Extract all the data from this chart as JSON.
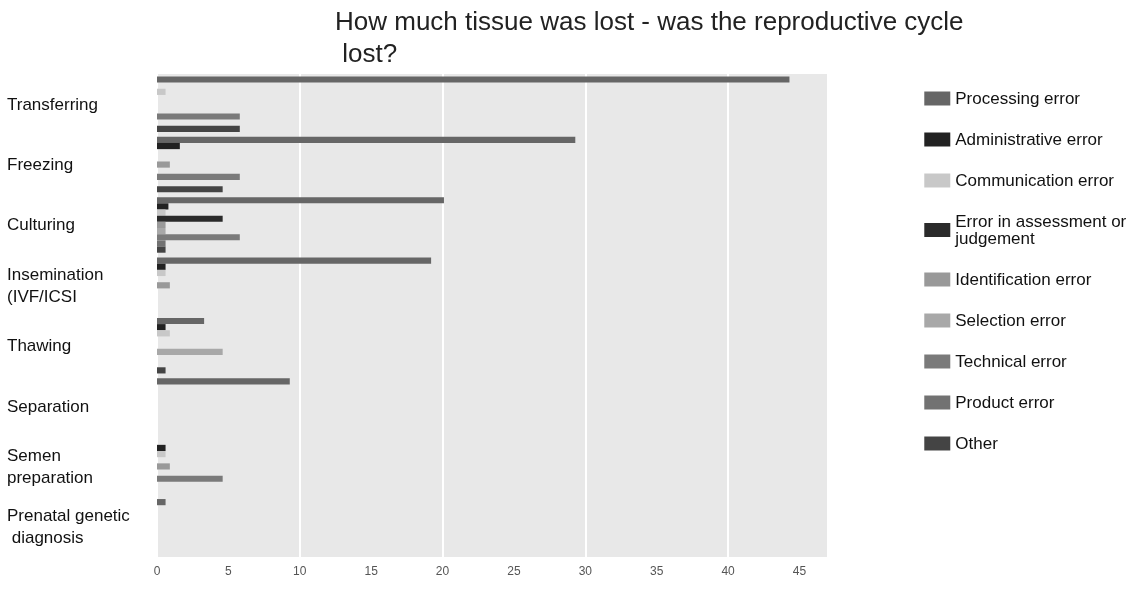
{
  "chart_data": {
    "type": "bar",
    "orientation": "horizontal",
    "title": "How much tissue was lost - was the reproductive cycle lost?",
    "categories": [
      "Transferring",
      "Freezing",
      "Culturing",
      "Insemination (IVF/ICSI",
      "Thawing",
      "Separation",
      "Semen preparation",
      "Prenatal genetic diagnosis"
    ],
    "series": [
      {
        "name": "Processing error",
        "color": "#666666",
        "values": [
          44.3,
          29.3,
          20.1,
          19.2,
          3.3,
          9.3,
          null,
          0.6
        ]
      },
      {
        "name": "Administrative error",
        "color": "#222222",
        "values": [
          null,
          1.6,
          0.8,
          0.6,
          0.6,
          null,
          0.6,
          null
        ]
      },
      {
        "name": "Communication error",
        "color": "#c8c8c8",
        "values": [
          0.6,
          null,
          0.6,
          0.6,
          0.9,
          null,
          0.6,
          null
        ]
      },
      {
        "name": "Error in assessment or judgement",
        "color": "#2a2a2a",
        "values": [
          null,
          null,
          4.6,
          null,
          null,
          null,
          null,
          null
        ]
      },
      {
        "name": "Identification error",
        "color": "#999999",
        "values": [
          null,
          0.9,
          0.6,
          0.9,
          null,
          null,
          0.9,
          null
        ]
      },
      {
        "name": "Selection error",
        "color": "#a8a8a8",
        "values": [
          null,
          null,
          0.6,
          null,
          4.6,
          null,
          null,
          null
        ]
      },
      {
        "name": "Technical error",
        "color": "#7a7a7a",
        "values": [
          5.8,
          5.8,
          5.8,
          null,
          null,
          null,
          4.6,
          null
        ]
      },
      {
        "name": "Product error",
        "color": "#727272",
        "values": [
          null,
          null,
          0.6,
          null,
          null,
          null,
          null,
          null
        ]
      },
      {
        "name": "Other",
        "color": "#444444",
        "values": [
          5.8,
          4.6,
          0.6,
          null,
          0.6,
          null,
          null,
          null
        ]
      }
    ],
    "xlim": [
      0,
      47
    ],
    "xticks": [
      0,
      5,
      10,
      15,
      20,
      25,
      30,
      35,
      40,
      45
    ],
    "grid": "x",
    "legend": "right"
  }
}
